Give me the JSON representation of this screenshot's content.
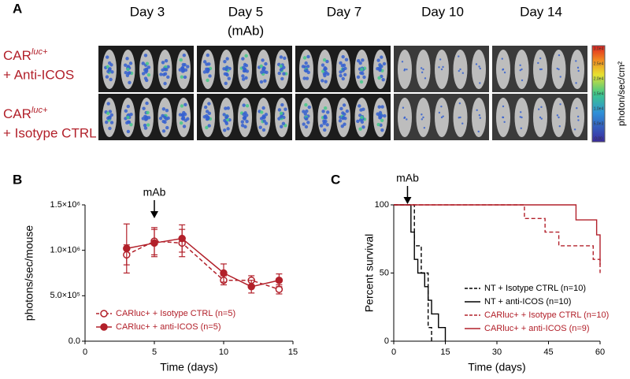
{
  "panel_labels": [
    "A",
    "B",
    "C"
  ],
  "imaging": {
    "days": [
      "Day 3",
      "Day 5",
      "Day 7",
      "Day 10",
      "Day 14"
    ],
    "day_note": "(mAb)",
    "rows": [
      {
        "prefix": "CAR",
        "sup": "luc+",
        "label": "+ Anti-ICOS"
      },
      {
        "prefix": "CAR",
        "sup": "luc+",
        "label": "+ Isotype CTRL"
      }
    ],
    "colorbar": {
      "ticks": [
        "3.0e4",
        "2.5e4",
        "2.0e4",
        "1.5e4",
        "1.0e4",
        "5.0e3",
        "0.00"
      ],
      "label": "photon/sec/cm²"
    }
  },
  "chart_data": [
    {
      "type": "line",
      "xlabel": "Time (days)",
      "ylabel": "photons/sec/mouse",
      "xlim": [
        0,
        15
      ],
      "xticks": [
        0,
        5,
        10,
        15
      ],
      "ylim": [
        0,
        1500000
      ],
      "yticks": [
        {
          "value": 0,
          "label": "0.0"
        },
        {
          "value": 500000,
          "label": "5.0×10⁵"
        },
        {
          "value": 1000000,
          "label": "1.0×10⁶"
        },
        {
          "value": 1500000,
          "label": "1.5×10⁶"
        }
      ],
      "annotations": [
        {
          "text": "mAb",
          "x": 5
        }
      ],
      "series": [
        {
          "name": "CARluc+ + Isotype CTRL (n=5)",
          "color": "#b2202a",
          "dashed": true,
          "marker": "open",
          "x": [
            3,
            5,
            7,
            10,
            12,
            14
          ],
          "values": [
            950000,
            1100000,
            1080000,
            670000,
            670000,
            570000
          ],
          "errors": [
            110000,
            150000,
            150000,
            50000,
            50000,
            50000
          ]
        },
        {
          "name": "CARluc+ + anti-ICOS (n=5)",
          "color": "#b2202a",
          "dashed": false,
          "marker": "filled",
          "x": [
            3,
            5,
            7,
            10,
            12,
            14
          ],
          "values": [
            1020000,
            1080000,
            1130000,
            750000,
            600000,
            670000
          ],
          "errors": [
            270000,
            150000,
            150000,
            100000,
            70000,
            70000
          ]
        }
      ]
    },
    {
      "type": "step",
      "xlabel": "Time (days)",
      "ylabel": "Percent survival",
      "xlim": [
        0,
        60
      ],
      "xticks": [
        0,
        15,
        30,
        45,
        60
      ],
      "ylim": [
        0,
        100
      ],
      "yticks": [
        0,
        50,
        100
      ],
      "annotations": [
        {
          "text": "mAb",
          "x": 4
        }
      ],
      "series": [
        {
          "name": "NT + Isotype CTRL (n=10)",
          "color": "#000000",
          "dashed": true,
          "x": [
            0,
            6,
            8,
            10,
            11
          ],
          "values": [
            100,
            70,
            50,
            10,
            0
          ]
        },
        {
          "name": "NT + anti-ICOS (n=10)",
          "color": "#000000",
          "dashed": false,
          "x": [
            0,
            5,
            6,
            7,
            9,
            10,
            11,
            13,
            15
          ],
          "values": [
            100,
            80,
            60,
            50,
            40,
            30,
            20,
            10,
            0
          ]
        },
        {
          "name": "CARluc+ + Isotype CTRL (n=10)",
          "color": "#b2202a",
          "dashed": true,
          "x": [
            0,
            38,
            44,
            48,
            58,
            60
          ],
          "values": [
            100,
            90,
            80,
            70,
            60,
            50
          ]
        },
        {
          "name": "CARluc+ + anti-ICOS (n=9)",
          "color": "#b2202a",
          "dashed": false,
          "x": [
            0,
            53,
            59,
            60
          ],
          "values": [
            100,
            89,
            78,
            56
          ]
        }
      ]
    }
  ]
}
